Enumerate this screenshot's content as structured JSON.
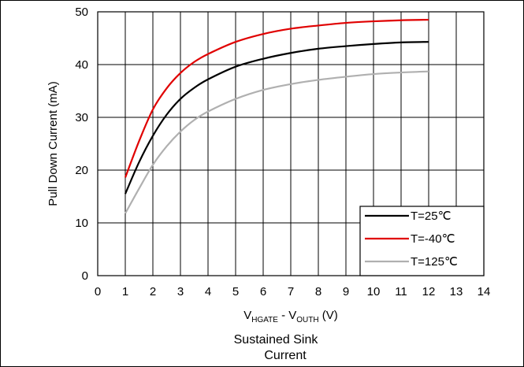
{
  "chart_data": {
    "type": "line",
    "title": "",
    "caption": [
      "Sustained Sink",
      "Current"
    ],
    "ylabel": "Pull Down Current (mA)",
    "xlabel": {
      "prefix": "V",
      "sub1": "HGATE",
      "mid": " - V",
      "sub2": "OUTH",
      "suffix": " (V)"
    },
    "xlim": [
      0,
      14
    ],
    "ylim": [
      0,
      50
    ],
    "xticks": [
      "0",
      "1",
      "2",
      "3",
      "4",
      "5",
      "6",
      "7",
      "8",
      "9",
      "10",
      "11",
      "12",
      "13",
      "14"
    ],
    "yticks": [
      "0",
      "10",
      "20",
      "30",
      "40",
      "50"
    ],
    "grid": true,
    "legend_position": "bottom-right",
    "series": [
      {
        "name": "T=25℃",
        "color": "#000000",
        "x": [
          1,
          1.5,
          2,
          2.5,
          3,
          3.5,
          4,
          5,
          6,
          7,
          8,
          9,
          10,
          11,
          12
        ],
        "y": [
          15.5,
          21.5,
          26.5,
          30.5,
          33.5,
          35.6,
          37.2,
          39.6,
          41.1,
          42.2,
          43.0,
          43.5,
          43.9,
          44.2,
          44.3
        ]
      },
      {
        "name": "T=-40℃",
        "color": "#e00000",
        "x": [
          1,
          1.5,
          2,
          2.5,
          3,
          3.5,
          4,
          5,
          6,
          7,
          8,
          9,
          10,
          11,
          12
        ],
        "y": [
          18.6,
          25.5,
          31.5,
          35.5,
          38.4,
          40.5,
          42.0,
          44.3,
          45.8,
          46.8,
          47.4,
          47.9,
          48.2,
          48.4,
          48.5
        ]
      },
      {
        "name": "T=125℃",
        "color": "#b0b0b0",
        "x": [
          1,
          1.5,
          2,
          2.5,
          3,
          3.5,
          4,
          5,
          6,
          7,
          8,
          9,
          10,
          11,
          12
        ],
        "y": [
          11.8,
          16.5,
          21.0,
          24.5,
          27.3,
          29.5,
          31.1,
          33.5,
          35.2,
          36.3,
          37.1,
          37.7,
          38.2,
          38.5,
          38.7
        ]
      }
    ]
  }
}
